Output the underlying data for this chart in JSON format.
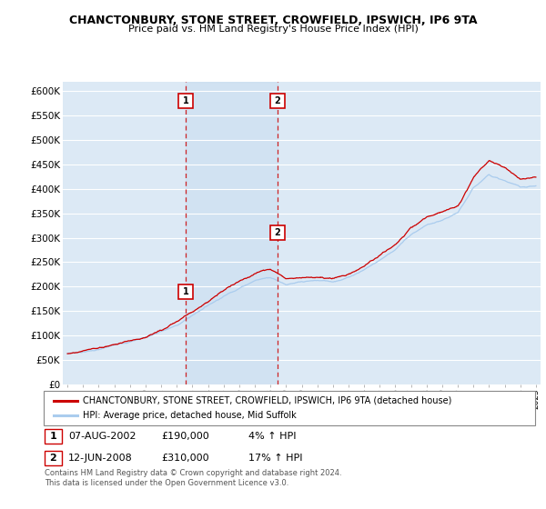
{
  "title": "CHANCTONBURY, STONE STREET, CROWFIELD, IPSWICH, IP6 9TA",
  "subtitle": "Price paid vs. HM Land Registry's House Price Index (HPI)",
  "ylim": [
    0,
    620000
  ],
  "yticks": [
    0,
    50000,
    100000,
    150000,
    200000,
    250000,
    300000,
    350000,
    400000,
    450000,
    500000,
    550000,
    600000
  ],
  "ytick_labels": [
    "£0",
    "£50K",
    "£100K",
    "£150K",
    "£200K",
    "£250K",
    "£300K",
    "£350K",
    "£400K",
    "£450K",
    "£500K",
    "£550K",
    "£600K"
  ],
  "bg_color": "#dce9f5",
  "line_color_house": "#cc0000",
  "line_color_hpi": "#aaccee",
  "legend_label_house": "CHANCTONBURY, STONE STREET, CROWFIELD, IPSWICH, IP6 9TA (detached house)",
  "legend_label_hpi": "HPI: Average price, detached house, Mid Suffolk",
  "sale1_date": "07-AUG-2002",
  "sale1_price": "£190,000",
  "sale1_hpi": "4% ↑ HPI",
  "sale2_date": "12-JUN-2008",
  "sale2_price": "£310,000",
  "sale2_hpi": "17% ↑ HPI",
  "footer": "Contains HM Land Registry data © Crown copyright and database right 2024.\nThis data is licensed under the Open Government Licence v3.0.",
  "years": [
    1995,
    1996,
    1997,
    1998,
    1999,
    2000,
    2001,
    2002,
    2003,
    2004,
    2005,
    2006,
    2007,
    2008,
    2009,
    2010,
    2011,
    2012,
    2013,
    2014,
    2015,
    2016,
    2017,
    2018,
    2019,
    2020,
    2021,
    2022,
    2023,
    2024,
    2025
  ],
  "hpi_values": [
    63000,
    67000,
    72000,
    80000,
    88000,
    98000,
    110000,
    122000,
    143000,
    165000,
    185000,
    203000,
    220000,
    228000,
    215000,
    218000,
    220000,
    218000,
    228000,
    245000,
    265000,
    288000,
    318000,
    338000,
    345000,
    358000,
    408000,
    438000,
    425000,
    412000,
    415000
  ],
  "house_values": [
    63000,
    67000,
    72000,
    80000,
    88000,
    98000,
    110000,
    125000,
    147000,
    170000,
    192000,
    210000,
    228000,
    238000,
    222000,
    225000,
    228000,
    224000,
    235000,
    253000,
    275000,
    300000,
    335000,
    355000,
    365000,
    378000,
    435000,
    470000,
    455000,
    430000,
    432000
  ],
  "sale1_x": 2002.58,
  "sale1_y": 190000,
  "sale2_x": 2008.45,
  "sale2_y": 310000,
  "xtick_years": [
    1995,
    1996,
    1997,
    1998,
    1999,
    2000,
    2001,
    2002,
    2003,
    2004,
    2005,
    2006,
    2007,
    2008,
    2009,
    2010,
    2011,
    2012,
    2013,
    2014,
    2015,
    2016,
    2017,
    2018,
    2019,
    2020,
    2021,
    2022,
    2023,
    2024,
    2025
  ]
}
